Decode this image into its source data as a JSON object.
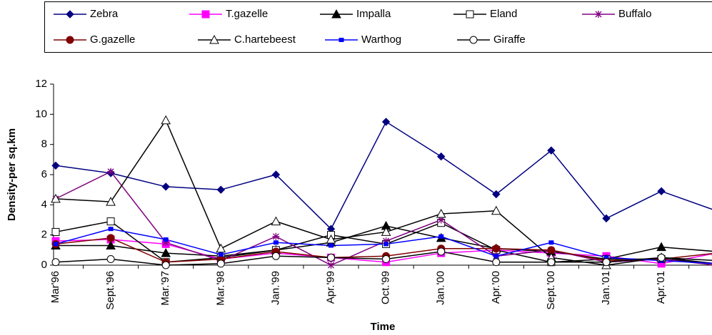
{
  "chart_data": {
    "type": "line",
    "x_label": "Time",
    "y_label": "Density-per sq.km",
    "categories": [
      "Mar'96",
      "Sept.'96",
      "Mar.'97",
      "Mar.'98",
      "Jan.'99",
      "Apr.'99",
      "Oct.'99",
      "Jan.'00",
      "Apr.'00",
      "Sept.'00",
      "Jan.'01",
      "Apr.'01",
      null
    ],
    "ylim": [
      0,
      12
    ],
    "yticks": [
      0,
      2,
      4,
      6,
      8,
      10,
      12
    ],
    "legend": "top",
    "series": [
      {
        "name": "Zebra",
        "color": "#000080",
        "marker": "diamond",
        "values": [
          6.6,
          6.1,
          5.2,
          5.0,
          6.0,
          2.4,
          9.5,
          7.2,
          4.7,
          7.6,
          3.1,
          4.9,
          3.6
        ]
      },
      {
        "name": "T.gazelle",
        "color": "#ff00ff",
        "marker": "square",
        "values": [
          1.6,
          1.7,
          1.4,
          0.4,
          0.8,
          0.5,
          0.2,
          0.8,
          1.0,
          0.8,
          0.6,
          0.1,
          0.8
        ]
      },
      {
        "name": "Impalla",
        "color": "#000000",
        "marker": "triangle",
        "values": [
          1.3,
          1.3,
          0.8,
          0.6,
          1.0,
          1.5,
          2.6,
          1.8,
          1.1,
          0.9,
          0.4,
          1.2,
          0.9
        ]
      },
      {
        "name": "Eland",
        "color": "#000000",
        "marker": "square-open",
        "values": [
          2.2,
          2.9,
          0.2,
          0.5,
          1.0,
          2.0,
          1.4,
          2.8,
          1.0,
          0.2,
          0.4,
          0.4,
          0.1
        ]
      },
      {
        "name": "Buffalo",
        "color": "#800080",
        "marker": "star",
        "values": [
          4.4,
          6.2,
          1.5,
          0.3,
          1.9,
          0.0,
          1.6,
          3.0,
          0.6,
          1.0,
          0.2,
          0.4,
          0.0
        ]
      },
      {
        "name": "G.gazelle",
        "color": "#800000",
        "marker": "circle",
        "values": [
          1.4,
          1.8,
          0.2,
          0.4,
          0.9,
          0.5,
          0.6,
          1.1,
          1.1,
          1.0,
          0.3,
          0.4,
          0.8
        ]
      },
      {
        "name": "C.hartebeest",
        "color": "#000000",
        "marker": "triangle-open",
        "values": [
          4.4,
          4.2,
          9.6,
          1.1,
          2.9,
          1.7,
          2.2,
          3.4,
          3.6,
          0.5,
          0.0,
          0.5,
          0.1
        ]
      },
      {
        "name": "Warthog",
        "color": "#0000ff",
        "marker": "small-square",
        "values": [
          1.4,
          2.4,
          1.7,
          0.7,
          1.5,
          1.3,
          1.4,
          1.9,
          0.6,
          1.5,
          0.5,
          0.3,
          0.1
        ]
      },
      {
        "name": "Giraffe",
        "color": "#000000",
        "marker": "circle-open",
        "values": [
          0.2,
          0.4,
          0.0,
          0.1,
          0.6,
          0.5,
          0.4,
          0.9,
          0.2,
          0.2,
          0.2,
          0.5,
          0.3
        ]
      }
    ]
  }
}
